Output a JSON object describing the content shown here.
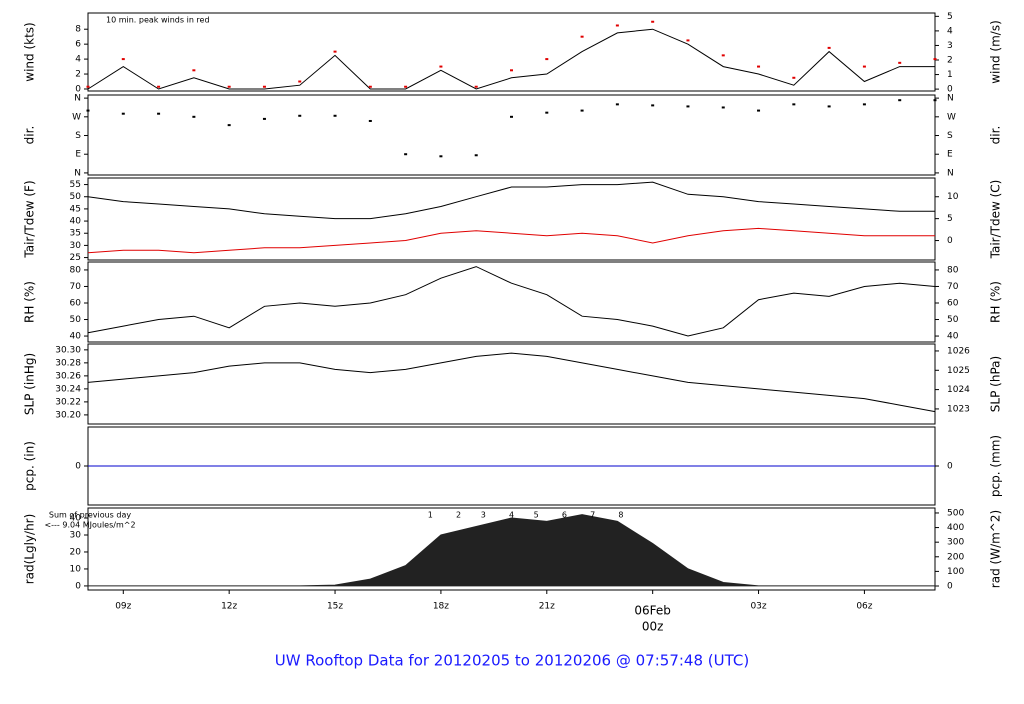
{
  "chart_data": {
    "type": "panels",
    "title": "UW Rooftop Data for 20120205  to  20120206 @ 07:57:48  (UTC)",
    "x": [
      8,
      9,
      10,
      11,
      12,
      13,
      14,
      15,
      16,
      17,
      18,
      19,
      20,
      21,
      22,
      23,
      24,
      25,
      26,
      27,
      28,
      29,
      30,
      31,
      32
    ],
    "xlim": [
      8,
      32
    ],
    "xticks": [
      {
        "value": 9,
        "label": "09z"
      },
      {
        "value": 12,
        "label": "12z"
      },
      {
        "value": 15,
        "label": "15z"
      },
      {
        "value": 18,
        "label": "18z"
      },
      {
        "value": 21,
        "label": "21z"
      },
      {
        "value": 24,
        "label": "00z"
      },
      {
        "value": 27,
        "label": "03z"
      },
      {
        "value": 30,
        "label": "06z"
      }
    ],
    "date_label": {
      "value": 24,
      "label": "06Feb",
      "color": "#e00000"
    },
    "panels": [
      {
        "type": "line",
        "ylabel": "wind (kts)",
        "y2label": "wind (m/s)",
        "ylim": [
          -0.27,
          10.17
        ],
        "yticks": [
          0,
          2,
          4,
          6,
          8
        ],
        "y2lim": [
          -0.13,
          5.23
        ],
        "y2ticks": [
          0,
          1,
          2,
          3,
          4,
          5
        ],
        "annotation": {
          "text": "10 min. peak winds in red",
          "color": "#e00000"
        },
        "series": [
          {
            "type": "line",
            "color": "#000000",
            "values": [
              0,
              3,
              0,
              1.5,
              0,
              0,
              0.5,
              4.5,
              0,
              0,
              2.5,
              0,
              1.5,
              2,
              5,
              7.5,
              8,
              6,
              3,
              2,
              0.5,
              5,
              1,
              3,
              3
            ]
          },
          {
            "type": "dots",
            "color": "#e00000",
            "values": [
              0.3,
              4,
              0.3,
              2.5,
              0.3,
              0.3,
              1,
              5,
              0.3,
              0.3,
              3,
              0.3,
              2.5,
              4,
              7,
              8.5,
              9,
              6.5,
              4.5,
              3,
              1.5,
              5.5,
              3,
              3.5,
              4
            ]
          }
        ]
      },
      {
        "type": "line",
        "ylabel": "dir.",
        "y2label": "dir.",
        "ylim": [
          -10,
          375
        ],
        "yticks": [
          {
            "value": 0,
            "label": "N"
          },
          {
            "value": 90,
            "label": "E"
          },
          {
            "value": 180,
            "label": "S"
          },
          {
            "value": 270,
            "label": "W"
          },
          {
            "value": 360,
            "label": "N"
          }
        ],
        "y2lim": [
          -10,
          375
        ],
        "y2ticks": [
          {
            "value": 0,
            "label": "N"
          },
          {
            "value": 90,
            "label": "E"
          },
          {
            "value": 180,
            "label": "S"
          },
          {
            "value": 270,
            "label": "W"
          },
          {
            "value": 360,
            "label": "N"
          }
        ],
        "series": [
          {
            "type": "dots",
            "color": "#000000",
            "values": [
              300,
              285,
              285,
              270,
              230,
              260,
              275,
              275,
              250,
              90,
              80,
              85,
              270,
              290,
              300,
              330,
              325,
              320,
              315,
              300,
              330,
              320,
              330,
              350,
              350
            ]
          }
        ]
      },
      {
        "type": "line",
        "ylabel": "Tair/Tdew (F)",
        "y2label": "Tair/Tdew (C)",
        "ylim": [
          24,
          57.7
        ],
        "yticks": [
          25,
          30,
          35,
          40,
          45,
          50,
          55
        ],
        "y2lim": [
          -4.44,
          14.28
        ],
        "y2ticks": [
          0,
          5,
          10
        ],
        "series": [
          {
            "type": "line",
            "color": "#000000",
            "values": [
              50,
              48,
              47,
              46,
              45,
              43,
              42,
              41,
              41,
              43,
              46,
              50,
              54,
              54,
              55,
              55,
              56,
              51,
              50,
              48,
              47,
              46,
              45,
              44,
              44
            ]
          },
          {
            "type": "line",
            "color": "#e00000",
            "values": [
              27,
              28,
              28,
              27,
              28,
              29,
              29,
              30,
              31,
              32,
              35,
              36,
              35,
              34,
              35,
              34,
              31,
              34,
              36,
              37,
              36,
              35,
              34,
              34,
              34
            ]
          }
        ]
      },
      {
        "type": "line",
        "ylabel": "RH (%)",
        "y2label": "RH (%)",
        "ylim": [
          36.4,
          84.8
        ],
        "yticks": [
          40,
          50,
          60,
          70,
          80
        ],
        "y2lim": [
          36.4,
          84.8
        ],
        "y2ticks": [
          40,
          50,
          60,
          70,
          80
        ],
        "series": [
          {
            "type": "line",
            "color": "#000000",
            "values": [
              42,
              46,
              50,
              52,
              45,
              58,
              60,
              58,
              60,
              65,
              75,
              82,
              72,
              65,
              52,
              50,
              46,
              40,
              45,
              62,
              66,
              64,
              70,
              72,
              70
            ]
          }
        ]
      },
      {
        "type": "line",
        "ylabel": "SLP (inHg)",
        "y2label": "SLP (hPa)",
        "ylim": [
          30.186,
          30.309
        ],
        "yticks": [
          {
            "value": 30.2,
            "label": "30.20"
          },
          30.22,
          30.24,
          30.26,
          30.28,
          {
            "value": 30.3,
            "label": "30.30"
          }
        ],
        "y2lim": [
          1022.22,
          1026.36
        ],
        "y2ticks": [
          1023,
          1024,
          1025,
          1026
        ],
        "series": [
          {
            "type": "line",
            "color": "#000000",
            "values": [
              30.25,
              30.255,
              30.26,
              30.265,
              30.275,
              30.28,
              30.28,
              30.27,
              30.265,
              30.27,
              30.28,
              30.29,
              30.295,
              30.29,
              30.28,
              30.27,
              30.26,
              30.25,
              30.245,
              30.24,
              30.235,
              30.23,
              30.225,
              30.215,
              30.205
            ]
          }
        ]
      },
      {
        "type": "line",
        "ylabel": "pcp. (in)",
        "y2label": "pcp. (mm)",
        "ylim": [
          -1,
          1
        ],
        "yticks": [
          0
        ],
        "y2lim": [
          -25.4,
          25.4
        ],
        "y2ticks": [
          0
        ],
        "series": [
          {
            "type": "line",
            "color": "#0000cc",
            "values": [
              0,
              0,
              0,
              0,
              0,
              0,
              0,
              0,
              0,
              0,
              0,
              0,
              0,
              0,
              0,
              0,
              0,
              0,
              0,
              0,
              0,
              0,
              0,
              0,
              0
            ]
          }
        ]
      },
      {
        "type": "line",
        "ylabel": "rad(Lgly/hr)",
        "y2label": "rad (W/m^2)",
        "ylim": [
          -2.4,
          45.9
        ],
        "yticks": [
          0,
          10,
          20,
          30,
          40
        ],
        "y2lim": [
          -27.4,
          534
        ],
        "y2ticks": [
          0,
          100,
          200,
          300,
          400,
          500
        ],
        "notes": [
          {
            "text": "Sum of previous day",
            "color": "#9900cc"
          },
          {
            "text": "<--- 9.04 MJoules/m^2",
            "color": "#9900cc"
          }
        ],
        "markers": [
          {
            "x": 17.7,
            "text": "1"
          },
          {
            "x": 18.5,
            "text": "2"
          },
          {
            "x": 19.2,
            "text": "3"
          },
          {
            "x": 20.0,
            "text": "4"
          },
          {
            "x": 20.7,
            "text": "5"
          },
          {
            "x": 21.5,
            "text": "6"
          },
          {
            "x": 22.3,
            "text": "7"
          },
          {
            "x": 23.1,
            "text": "8"
          }
        ],
        "series": [
          {
            "type": "area",
            "color": "#222222",
            "values": [
              0,
              0,
              0,
              0,
              0,
              0,
              0,
              0.5,
              4,
              12,
              30,
              35,
              40,
              38,
              42,
              38,
              25,
              10,
              2,
              0,
              0,
              0,
              0,
              0,
              0
            ]
          }
        ]
      }
    ]
  }
}
